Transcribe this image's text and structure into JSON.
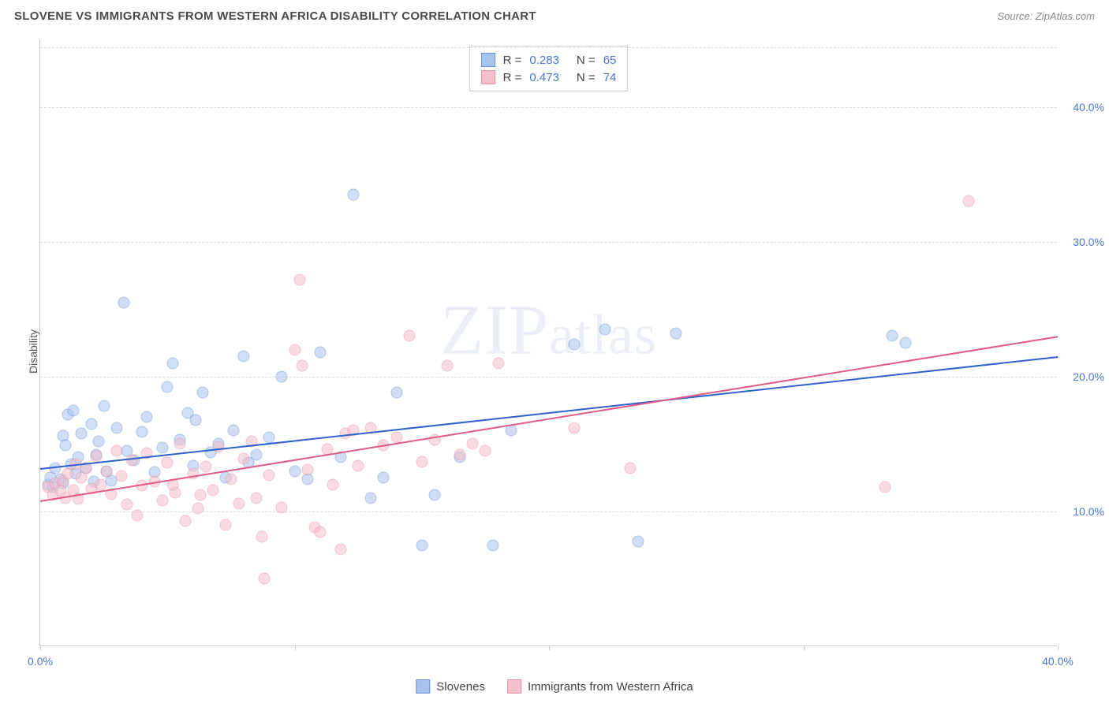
{
  "title": "SLOVENE VS IMMIGRANTS FROM WESTERN AFRICA DISABILITY CORRELATION CHART",
  "source": "Source: ZipAtlas.com",
  "watermark": "ZIPatlas",
  "ylabel": "Disability",
  "chart": {
    "type": "scatter",
    "xlim": [
      0,
      40
    ],
    "ylim": [
      0,
      45
    ],
    "xticks": [
      0,
      10,
      20,
      30,
      40
    ],
    "xtick_labels": [
      "0.0%",
      "",
      "",
      "",
      "40.0%"
    ],
    "yticks": [
      10,
      20,
      30,
      40
    ],
    "ytick_labels": [
      "10.0%",
      "20.0%",
      "30.0%",
      "40.0%"
    ],
    "background_color": "#ffffff",
    "grid_color": "#dddddd",
    "axis_color": "#cccccc",
    "label_color": "#4a76d4",
    "marker_size": 15,
    "marker_opacity": 0.55,
    "series": [
      {
        "name": "Slovenes",
        "color_fill": "#a8c4ec",
        "color_border": "#6b95d8",
        "R": 0.283,
        "N": 65,
        "trend": {
          "x1": 0,
          "y1": 13.2,
          "x2": 40,
          "y2": 21.5,
          "color": "#2e62c9",
          "width": 2
        },
        "points": [
          [
            0.3,
            12.0
          ],
          [
            0.4,
            12.5
          ],
          [
            0.5,
            11.8
          ],
          [
            0.6,
            13.2
          ],
          [
            0.8,
            12.4
          ],
          [
            0.9,
            15.6
          ],
          [
            0.9,
            12.1
          ],
          [
            1.1,
            17.2
          ],
          [
            1.2,
            13.5
          ],
          [
            1.3,
            17.5
          ],
          [
            1.4,
            12.8
          ],
          [
            1.5,
            14.0
          ],
          [
            1.6,
            15.8
          ],
          [
            1.8,
            13.2
          ],
          [
            2.0,
            16.5
          ],
          [
            2.1,
            12.2
          ],
          [
            2.3,
            15.2
          ],
          [
            2.5,
            17.8
          ],
          [
            2.6,
            13.0
          ],
          [
            2.8,
            12.3
          ],
          [
            3.0,
            16.2
          ],
          [
            3.3,
            25.5
          ],
          [
            3.4,
            14.5
          ],
          [
            3.7,
            13.8
          ],
          [
            4.0,
            15.9
          ],
          [
            4.2,
            17.0
          ],
          [
            4.5,
            12.9
          ],
          [
            4.8,
            14.7
          ],
          [
            5.0,
            19.2
          ],
          [
            5.2,
            21.0
          ],
          [
            5.5,
            15.3
          ],
          [
            5.8,
            17.3
          ],
          [
            6.0,
            13.4
          ],
          [
            6.1,
            16.8
          ],
          [
            6.4,
            18.8
          ],
          [
            6.7,
            14.4
          ],
          [
            7.0,
            15.0
          ],
          [
            7.3,
            12.5
          ],
          [
            7.6,
            16.0
          ],
          [
            8.0,
            21.5
          ],
          [
            8.2,
            13.6
          ],
          [
            8.5,
            14.2
          ],
          [
            9.0,
            15.5
          ],
          [
            9.5,
            20.0
          ],
          [
            10.0,
            13.0
          ],
          [
            10.5,
            12.4
          ],
          [
            11.0,
            21.8
          ],
          [
            11.8,
            14.0
          ],
          [
            12.3,
            33.5
          ],
          [
            13.0,
            11.0
          ],
          [
            13.5,
            12.5
          ],
          [
            14.0,
            18.8
          ],
          [
            15.0,
            7.5
          ],
          [
            15.5,
            11.2
          ],
          [
            16.5,
            14.0
          ],
          [
            17.8,
            7.5
          ],
          [
            18.5,
            16.0
          ],
          [
            21.0,
            22.4
          ],
          [
            22.2,
            23.5
          ],
          [
            23.5,
            7.8
          ],
          [
            25.0,
            23.2
          ],
          [
            33.5,
            23.0
          ],
          [
            34.0,
            22.5
          ],
          [
            1.0,
            14.9
          ],
          [
            2.2,
            14.2
          ]
        ]
      },
      {
        "name": "Immigrants from Western Africa",
        "color_fill": "#f4c0cb",
        "color_border": "#eb8fa5",
        "R": 0.473,
        "N": 74,
        "trend": {
          "x1": 0,
          "y1": 10.8,
          "x2": 40,
          "y2": 23.0,
          "color": "#e05a85",
          "width": 2
        },
        "points": [
          [
            0.3,
            11.8
          ],
          [
            0.5,
            11.2
          ],
          [
            0.6,
            12.1
          ],
          [
            0.8,
            11.5
          ],
          [
            0.9,
            12.3
          ],
          [
            1.0,
            11.0
          ],
          [
            1.1,
            12.8
          ],
          [
            1.3,
            11.6
          ],
          [
            1.4,
            13.5
          ],
          [
            1.5,
            10.9
          ],
          [
            1.6,
            12.5
          ],
          [
            1.8,
            13.2
          ],
          [
            2.0,
            11.7
          ],
          [
            2.2,
            14.1
          ],
          [
            2.4,
            12.0
          ],
          [
            2.6,
            13.0
          ],
          [
            2.8,
            11.3
          ],
          [
            3.0,
            14.5
          ],
          [
            3.2,
            12.6
          ],
          [
            3.4,
            10.5
          ],
          [
            3.6,
            13.8
          ],
          [
            3.8,
            9.7
          ],
          [
            4.0,
            11.9
          ],
          [
            4.2,
            14.3
          ],
          [
            4.5,
            12.2
          ],
          [
            4.8,
            10.8
          ],
          [
            5.0,
            13.6
          ],
          [
            5.3,
            11.4
          ],
          [
            5.5,
            15.0
          ],
          [
            5.7,
            9.3
          ],
          [
            6.0,
            12.8
          ],
          [
            6.2,
            10.2
          ],
          [
            6.5,
            13.3
          ],
          [
            6.8,
            11.6
          ],
          [
            7.0,
            14.8
          ],
          [
            7.3,
            9.0
          ],
          [
            7.5,
            12.4
          ],
          [
            7.8,
            10.6
          ],
          [
            8.0,
            13.9
          ],
          [
            8.3,
            15.2
          ],
          [
            8.5,
            11.0
          ],
          [
            8.7,
            8.1
          ],
          [
            8.8,
            5.0
          ],
          [
            9.0,
            12.7
          ],
          [
            9.5,
            10.3
          ],
          [
            10.0,
            22.0
          ],
          [
            10.2,
            27.2
          ],
          [
            10.3,
            20.8
          ],
          [
            10.5,
            13.1
          ],
          [
            10.8,
            8.8
          ],
          [
            11.0,
            8.5
          ],
          [
            11.3,
            14.6
          ],
          [
            11.5,
            12.0
          ],
          [
            11.8,
            7.2
          ],
          [
            12.0,
            15.8
          ],
          [
            12.3,
            16.0
          ],
          [
            12.5,
            13.4
          ],
          [
            13.0,
            16.2
          ],
          [
            13.5,
            14.9
          ],
          [
            14.0,
            15.5
          ],
          [
            14.5,
            23.0
          ],
          [
            15.0,
            13.7
          ],
          [
            15.5,
            15.3
          ],
          [
            16.0,
            20.8
          ],
          [
            16.5,
            14.2
          ],
          [
            17.0,
            15.0
          ],
          [
            17.5,
            14.5
          ],
          [
            18.0,
            21.0
          ],
          [
            21.0,
            16.2
          ],
          [
            23.2,
            13.2
          ],
          [
            33.2,
            11.8
          ],
          [
            36.5,
            33.0
          ],
          [
            5.2,
            12.0
          ],
          [
            6.3,
            11.2
          ]
        ]
      }
    ]
  },
  "bottom_legend": [
    {
      "label": "Slovenes",
      "fill": "#a8c4ec",
      "border": "#6b95d8"
    },
    {
      "label": "Immigrants from Western Africa",
      "fill": "#f4c0cb",
      "border": "#eb8fa5"
    }
  ]
}
